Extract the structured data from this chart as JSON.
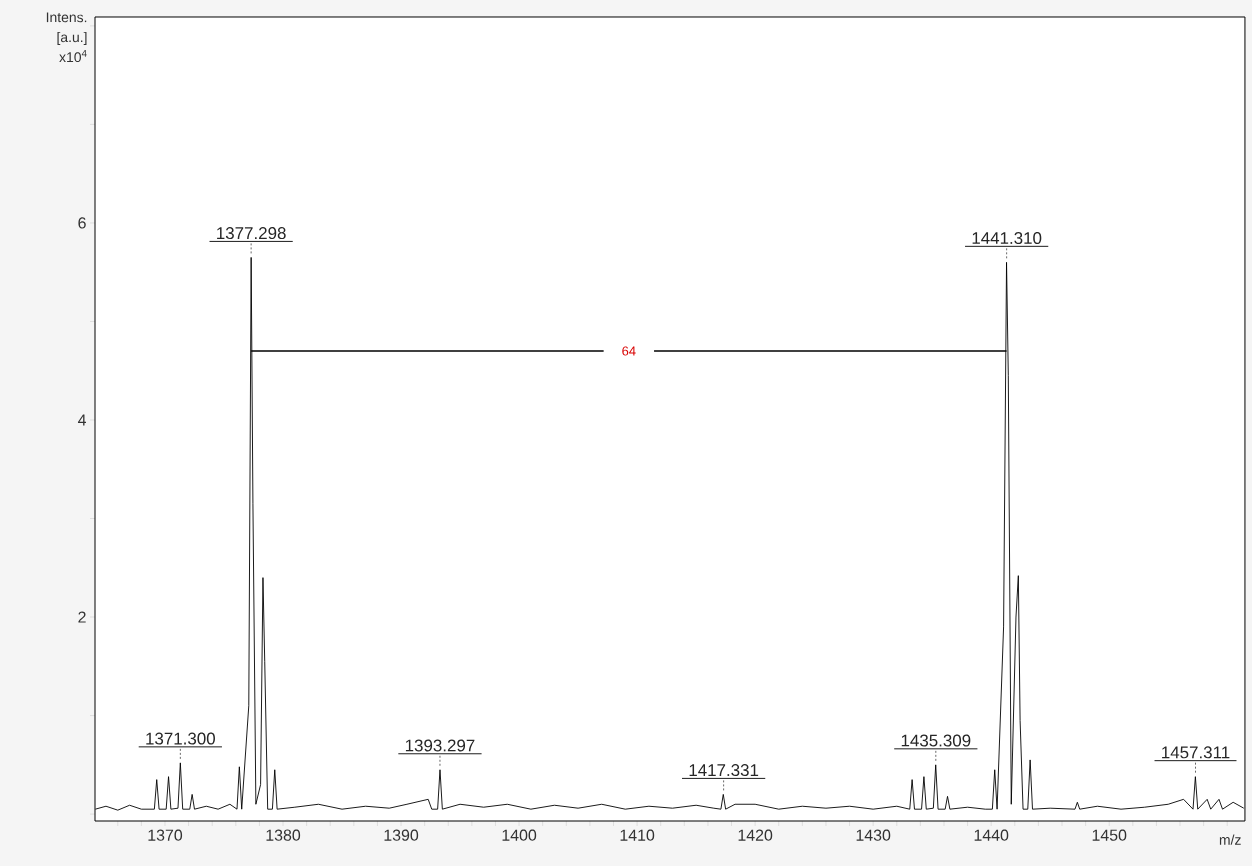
{
  "chart_data": {
    "type": "line",
    "xlabel": "m/z",
    "ylabel": "Intens. [a.u.] x10$^{4}$",
    "xlim": [
      1364.07,
      1461.5
    ],
    "ylim": [
      -0.07,
      8.09
    ],
    "xticks": [
      {
        "value": 1366,
        "label": null
      },
      {
        "value": 1368,
        "label": null
      },
      1370,
      {
        "value": 1372,
        "label": null
      },
      {
        "value": 1374,
        "label": null
      },
      {
        "value": 1376,
        "label": null
      },
      {
        "value": 1378,
        "label": null
      },
      1380,
      {
        "value": 1382,
        "label": null
      },
      {
        "value": 1384,
        "label": null
      },
      {
        "value": 1386,
        "label": null
      },
      {
        "value": 1388,
        "label": null
      },
      1390,
      {
        "value": 1392,
        "label": null
      },
      {
        "value": 1394,
        "label": null
      },
      {
        "value": 1396,
        "label": null
      },
      {
        "value": 1398,
        "label": null
      },
      1400,
      {
        "value": 1402,
        "label": null
      },
      {
        "value": 1404,
        "label": null
      },
      {
        "value": 1406,
        "label": null
      },
      {
        "value": 1408,
        "label": null
      },
      1410,
      {
        "value": 1412,
        "label": null
      },
      {
        "value": 1414,
        "label": null
      },
      {
        "value": 1416,
        "label": null
      },
      {
        "value": 1418,
        "label": null
      },
      1420,
      {
        "value": 1422,
        "label": null
      },
      {
        "value": 1424,
        "label": null
      },
      {
        "value": 1426,
        "label": null
      },
      {
        "value": 1428,
        "label": null
      },
      1430,
      {
        "value": 1432,
        "label": null
      },
      {
        "value": 1434,
        "label": null
      },
      {
        "value": 1436,
        "label": null
      },
      {
        "value": 1438,
        "label": null
      },
      1440,
      {
        "value": 1442,
        "label": null
      },
      {
        "value": 1444,
        "label": null
      },
      {
        "value": 1446,
        "label": null
      },
      {
        "value": 1448,
        "label": null
      },
      1450,
      {
        "value": 1452,
        "label": null
      },
      {
        "value": 1454,
        "label": null
      },
      {
        "value": 1456,
        "label": null
      },
      {
        "value": 1458,
        "label": null
      },
      {
        "value": 1460,
        "label": null
      }
    ],
    "yticks": [
      {
        "value": 0,
        "label": null
      },
      {
        "value": 1,
        "label": null
      },
      2,
      {
        "value": 3,
        "label": null
      },
      4,
      {
        "value": 5,
        "label": null
      },
      6,
      {
        "value": 7,
        "label": null
      },
      {
        "value": 8,
        "label": null
      }
    ],
    "grid": false,
    "marker": "none",
    "line_style": "solid",
    "series": [
      {
        "color": "#000000",
        "x": [
          1364.1,
          1365,
          1366,
          1367,
          1368,
          1369.1,
          1369.3,
          1369.5,
          1370.1,
          1370.3,
          1370.5,
          1371.1,
          1371.3,
          1371.5,
          1372.1,
          1372.3,
          1372.5,
          1373.5,
          1374.5,
          1375.5,
          1376.1,
          1376.3,
          1376.5,
          1377.1,
          1377.3,
          1377.45,
          1377.7,
          1378.1,
          1378.3,
          1378.45,
          1378.7,
          1379.1,
          1379.3,
          1379.5,
          1381,
          1383,
          1385,
          1387,
          1389,
          1390.5,
          1392.3,
          1392.6,
          1393.1,
          1393.3,
          1393.5,
          1395,
          1397,
          1399,
          1401,
          1403,
          1405,
          1407,
          1409,
          1411,
          1413,
          1415,
          1416.5,
          1417.1,
          1417.3,
          1417.5,
          1418.3,
          1420,
          1422,
          1424,
          1426,
          1428,
          1430,
          1432,
          1433.1,
          1433.3,
          1433.5,
          1434.1,
          1434.3,
          1434.5,
          1435.1,
          1435.3,
          1435.5,
          1436.1,
          1436.3,
          1436.5,
          1438,
          1439.5,
          1440.1,
          1440.3,
          1440.5,
          1441.05,
          1441.3,
          1441.45,
          1441.7,
          1442.1,
          1442.3,
          1442.45,
          1442.7,
          1443.1,
          1443.3,
          1443.5,
          1445,
          1447.1,
          1447.3,
          1447.5,
          1449,
          1451,
          1453,
          1455,
          1456.3,
          1457.1,
          1457.3,
          1457.5,
          1458.3,
          1458.6,
          1459.3,
          1459.6,
          1460.5,
          1461.4
        ],
        "values": [
          0.05,
          0.08,
          0.04,
          0.09,
          0.05,
          0.05,
          0.35,
          0.05,
          0.05,
          0.38,
          0.05,
          0.06,
          0.52,
          0.05,
          0.05,
          0.2,
          0.05,
          0.08,
          0.05,
          0.1,
          0.05,
          0.48,
          0.05,
          1.1,
          5.65,
          3.15,
          0.1,
          0.3,
          2.4,
          1.55,
          0.05,
          0.05,
          0.45,
          0.05,
          0.07,
          0.1,
          0.05,
          0.08,
          0.06,
          0.1,
          0.15,
          0.05,
          0.05,
          0.45,
          0.05,
          0.1,
          0.07,
          0.1,
          0.05,
          0.09,
          0.06,
          0.1,
          0.05,
          0.08,
          0.06,
          0.09,
          0.06,
          0.05,
          0.2,
          0.05,
          0.1,
          0.1,
          0.05,
          0.08,
          0.06,
          0.08,
          0.05,
          0.08,
          0.05,
          0.35,
          0.05,
          0.05,
          0.38,
          0.05,
          0.06,
          0.5,
          0.05,
          0.05,
          0.18,
          0.05,
          0.07,
          0.05,
          0.05,
          0.45,
          0.05,
          1.9,
          5.6,
          4.45,
          0.1,
          2.0,
          2.42,
          0.95,
          0.05,
          0.05,
          0.55,
          0.05,
          0.06,
          0.05,
          0.12,
          0.05,
          0.08,
          0.05,
          0.07,
          0.1,
          0.15,
          0.05,
          0.38,
          0.05,
          0.15,
          0.05,
          0.15,
          0.05,
          0.12,
          0.06
        ]
      },
      {
        "color": "#000000",
        "x": [
          1377.3,
          1441.3
        ],
        "values": [
          4.7,
          4.7
        ]
      }
    ],
    "annotations": [
      {
        "text": "1371.300",
        "x": 1371.3,
        "y": 0.52
      },
      {
        "text": "1377.298",
        "x": 1377.298,
        "y": 5.65
      },
      {
        "text": "1393.297",
        "x": 1393.297,
        "y": 0.45
      },
      {
        "text": "1417.331",
        "x": 1417.331,
        "y": 0.2
      },
      {
        "text": "1435.309",
        "x": 1435.309,
        "y": 0.5
      },
      {
        "text": "1441.310",
        "x": 1441.31,
        "y": 5.6
      },
      {
        "text": "1457.311",
        "x": 1457.311,
        "y": 0.38
      },
      {
        "text": "64",
        "x": 1409.3,
        "y": 4.7
      }
    ]
  }
}
